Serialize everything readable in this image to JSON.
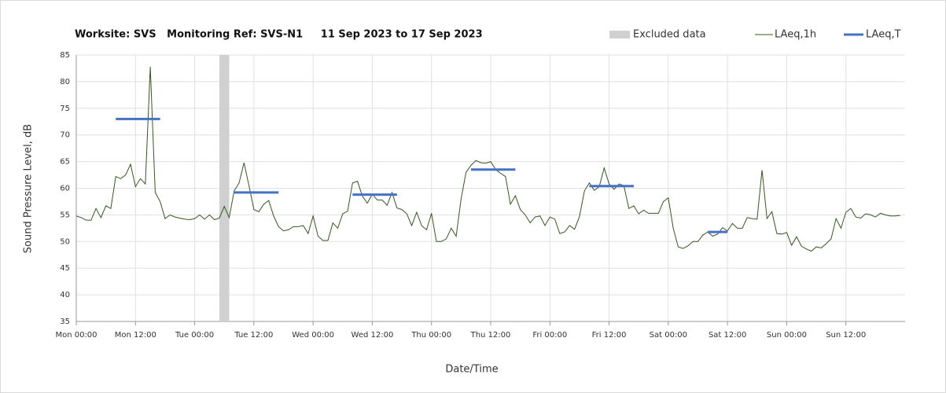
{
  "chart_data": {
    "type": "line",
    "title": "Worksite: SVS   Monitoring Ref: SVS-N1     11 Sep 2023 to 17 Sep 2023",
    "y_label": "Sound Pressure Level, dB",
    "x_label": "Date/Time",
    "xlim": [
      0,
      168
    ],
    "xticks": [
      {
        "value": 0,
        "label": "Mon 00:00"
      },
      {
        "value": 12,
        "label": "Mon 12:00"
      },
      {
        "value": 24,
        "label": "Tue 00:00"
      },
      {
        "value": 36,
        "label": "Tue 12:00"
      },
      {
        "value": 48,
        "label": "Wed 00:00"
      },
      {
        "value": 60,
        "label": "Wed 12:00"
      },
      {
        "value": 72,
        "label": "Thu 00:00"
      },
      {
        "value": 84,
        "label": "Thu 12:00"
      },
      {
        "value": 96,
        "label": "Fri 00:00"
      },
      {
        "value": 108,
        "label": "Fri 12:00"
      },
      {
        "value": 120,
        "label": "Sat 00:00"
      },
      {
        "value": 132,
        "label": "Sat 12:00"
      },
      {
        "value": 144,
        "label": "Sun 00:00"
      },
      {
        "value": 156,
        "label": "Sun 12:00"
      }
    ],
    "ylim": [
      35,
      85
    ],
    "yticks": [
      35,
      40,
      45,
      50,
      55,
      60,
      65,
      70,
      75,
      80,
      85
    ],
    "grid": true,
    "legend": "top-right",
    "excluded": {
      "name": "Excluded data",
      "color": "#d0d0d0",
      "start": [
        29
      ],
      "end": [
        31
      ]
    },
    "x": [
      0,
      1,
      2,
      3,
      4,
      5,
      6,
      7,
      8,
      9,
      10,
      11,
      12,
      13,
      14,
      15,
      16,
      17,
      18,
      19,
      20,
      21,
      22,
      23,
      24,
      25,
      26,
      27,
      28,
      29,
      30,
      31,
      32,
      33,
      34,
      35,
      36,
      37,
      38,
      39,
      40,
      41,
      42,
      43,
      44,
      45,
      46,
      47,
      48,
      49,
      50,
      51,
      52,
      53,
      54,
      55,
      56,
      57,
      58,
      59,
      60,
      61,
      62,
      63,
      64,
      65,
      66,
      67,
      68,
      69,
      70,
      71,
      72,
      73,
      74,
      75,
      76,
      77,
      78,
      79,
      80,
      81,
      82,
      83,
      84,
      85,
      86,
      87,
      88,
      89,
      90,
      91,
      92,
      93,
      94,
      95,
      96,
      97,
      98,
      99,
      100,
      101,
      102,
      103,
      104,
      105,
      106,
      107,
      108,
      109,
      110,
      111,
      112,
      113,
      114,
      115,
      116,
      117,
      118,
      119,
      120,
      121,
      122,
      123,
      124,
      125,
      126,
      127,
      128,
      129,
      130,
      131,
      132,
      133,
      134,
      135,
      136,
      137,
      138,
      139,
      140,
      141,
      142,
      143,
      144,
      145,
      146,
      147,
      148,
      149,
      150,
      151,
      152,
      153,
      154,
      155,
      156,
      157,
      158,
      159,
      160,
      161,
      162,
      163,
      164,
      165,
      166,
      167
    ],
    "series": [
      {
        "name": "LAeq,1h",
        "color": "#375623",
        "values": [
          54.8,
          54.5,
          54,
          54,
          56.2,
          54.5,
          56.7,
          56.2,
          62.2,
          61.8,
          62.5,
          64.5,
          60.3,
          61.8,
          60.8,
          82.8,
          59.2,
          57.5,
          54.3,
          55,
          54.6,
          54.4,
          54.2,
          54.1,
          54.3,
          55,
          54.2,
          55,
          54.1,
          54.4,
          56.6,
          54.5,
          59.5,
          61,
          64.8,
          60.5,
          56,
          55.6,
          57,
          57.7,
          54.8,
          52.8,
          52,
          52.2,
          52.8,
          52.8,
          53,
          51.5,
          54.8,
          51,
          50.2,
          50.2,
          53.5,
          52.5,
          55.2,
          55.7,
          61,
          61.3,
          58.5,
          57.2,
          58.9,
          57.8,
          57.8,
          56.8,
          59.2,
          56.3,
          56,
          55.2,
          53,
          55.5,
          53,
          52.2,
          55.3,
          50,
          50,
          50.5,
          52.5,
          51,
          58,
          63,
          64.3,
          65.2,
          64.8,
          64.7,
          65,
          63.5,
          62.8,
          62.2,
          57,
          58.6,
          56,
          55,
          53.5,
          54.6,
          54.8,
          53,
          54.6,
          54.2,
          51.5,
          51.8,
          53,
          52.3,
          54.7,
          59.5,
          61,
          59.6,
          60.3,
          63.8,
          60.8,
          59.8,
          60.8,
          60.5,
          56.2,
          56.7,
          55.2,
          55.9,
          55.3,
          55.3,
          55.3,
          57.5,
          58.2,
          52.5,
          49,
          48.7,
          49.2,
          50,
          50,
          51.2,
          51.8,
          51,
          51.4,
          52.6,
          52,
          53.4,
          52.5,
          52.5,
          54.5,
          54.3,
          54.2,
          63.4,
          54.3,
          55.6,
          51.5,
          51.4,
          51.7,
          49.3,
          50.9,
          49.1,
          48.6,
          48.2,
          49,
          48.8,
          49.6,
          50.5,
          54.3,
          52.5,
          55.5,
          56.2,
          54.6,
          54.4,
          55.2,
          55,
          54.6,
          55.3,
          55,
          54.8,
          54.8,
          54.9
        ]
      }
    ],
    "periods": {
      "name": "LAeq,T",
      "color": "#4472c4",
      "start": [
        8,
        32,
        56,
        80,
        104,
        128
      ],
      "end": [
        17,
        41,
        65,
        89,
        113,
        132
      ],
      "values": [
        73,
        59.2,
        58.8,
        63.5,
        60.4,
        51.8
      ]
    }
  }
}
